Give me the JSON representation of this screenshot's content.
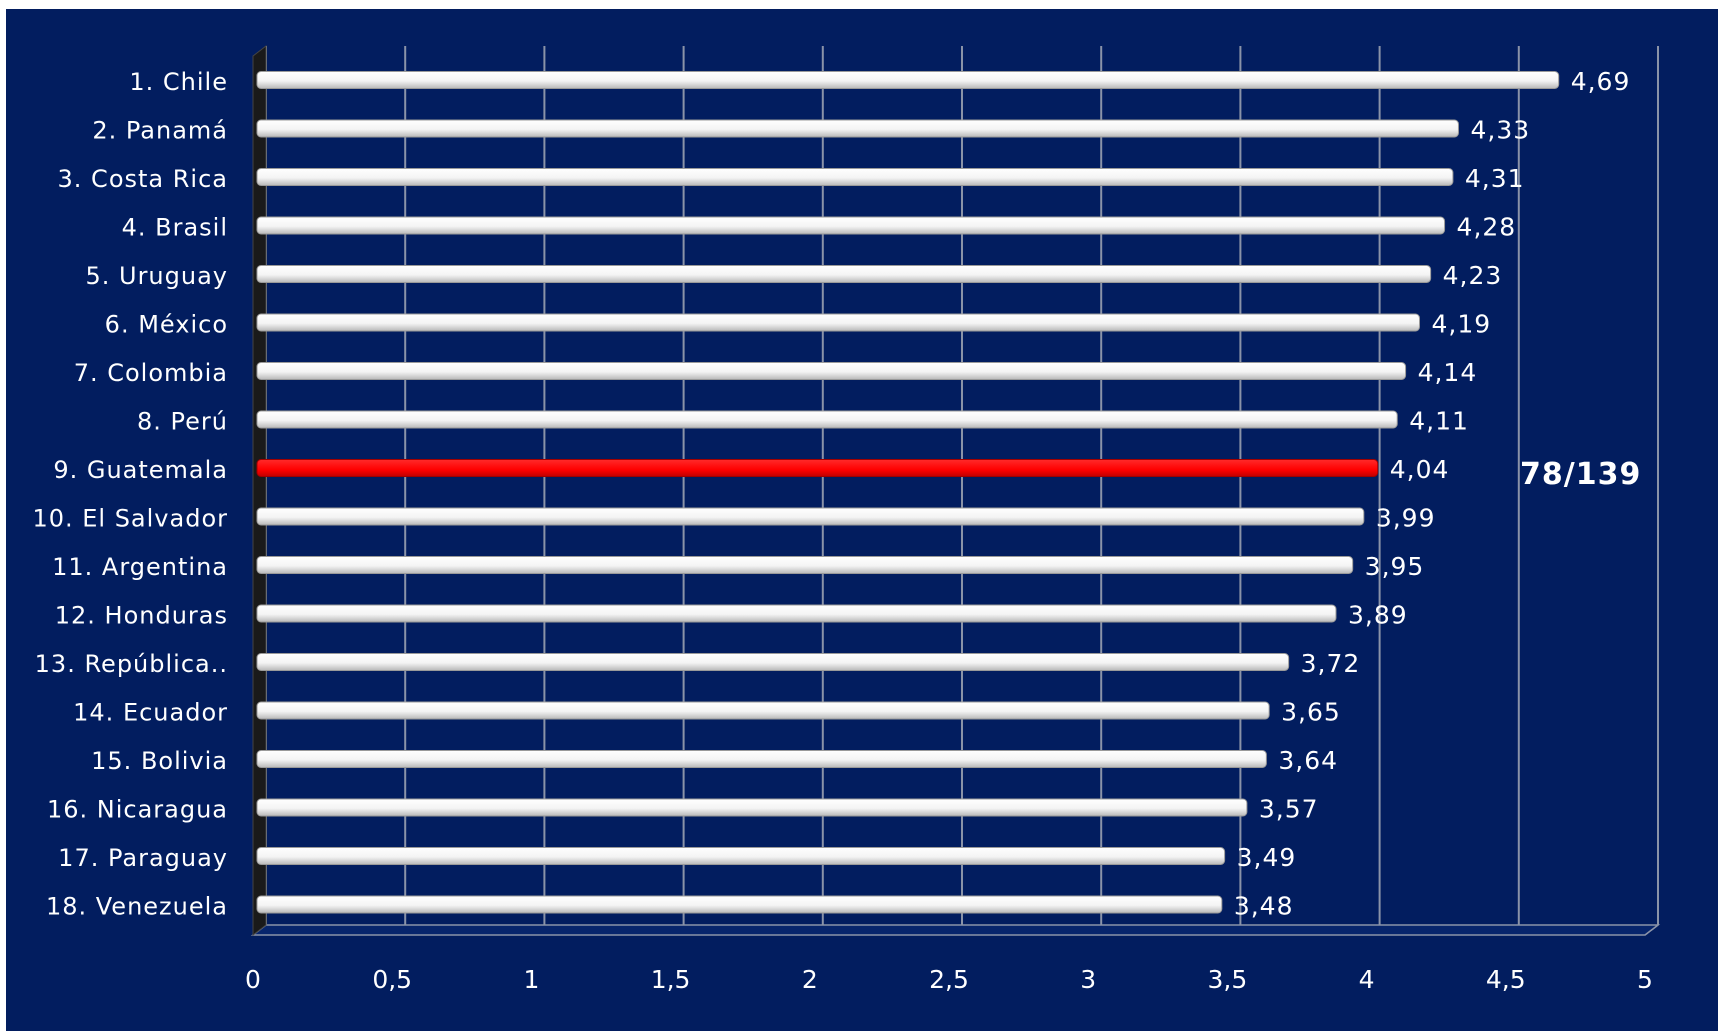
{
  "rank_badge": "78/139",
  "colors": {
    "background": "#021d5f",
    "bar": "#ffffff",
    "highlight_bar": "#ff0000",
    "grid": "#8a93a8",
    "text": "#ffffff"
  },
  "chart_data": {
    "type": "bar",
    "orientation": "horizontal",
    "title": "",
    "xlabel": "",
    "ylabel": "",
    "xlim": [
      0,
      5
    ],
    "x_ticks": [
      "0",
      "0,5",
      "1",
      "1,5",
      "2",
      "2,5",
      "3",
      "3,5",
      "4",
      "4,5",
      "5"
    ],
    "grid": true,
    "categories": [
      "1. Chile",
      "2. Panamá",
      "3. Costa Rica",
      "4. Brasil",
      "5. Uruguay",
      "6. México",
      "7. Colombia",
      "8. Perú",
      "9. Guatemala",
      "10. El Salvador",
      "11. Argentina",
      "12. Honduras",
      "13. República..",
      "14. Ecuador",
      "15. Bolivia",
      "16. Nicaragua",
      "17. Paraguay",
      "18. Venezuela"
    ],
    "values": [
      4.69,
      4.33,
      4.31,
      4.28,
      4.23,
      4.19,
      4.14,
      4.11,
      4.04,
      3.99,
      3.95,
      3.89,
      3.72,
      3.65,
      3.64,
      3.57,
      3.49,
      3.48
    ],
    "value_labels": [
      "4,69",
      "4,33",
      "4,31",
      "4,28",
      "4,23",
      "4,19",
      "4,14",
      "4,11",
      "4,04",
      "3,99",
      "3,95",
      "3,89",
      "3,72",
      "3,65",
      "3,64",
      "3,57",
      "3,49",
      "3,48"
    ],
    "highlight_category": "9. Guatemala"
  }
}
